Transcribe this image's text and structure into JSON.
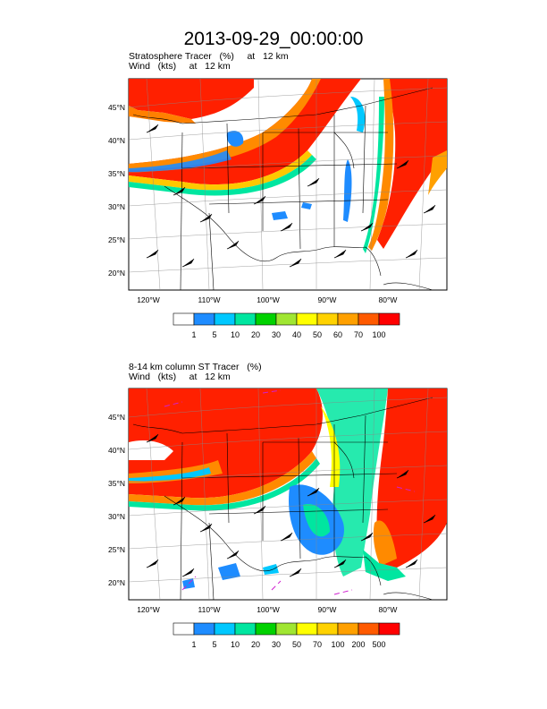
{
  "title": "2013-09-29_00:00:00",
  "panels": [
    {
      "line1": "Stratosphere Tracer   (%)     at   12 km",
      "line2": "Wind   (kts)     at   12 km",
      "colorbar_labels": [
        "1",
        "5",
        "10",
        "20",
        "30",
        "40",
        "50",
        "60",
        "70",
        "100"
      ]
    },
    {
      "line1": "8-14 km column ST Tracer   (%)",
      "line2": "Wind   (kts)     at   12 km",
      "colorbar_labels": [
        "1",
        "5",
        "10",
        "20",
        "30",
        "50",
        "70",
        "100",
        "200",
        "500"
      ]
    }
  ],
  "lat_labels": [
    "45°N",
    "40°N",
    "35°N",
    "30°N",
    "25°N",
    "20°N"
  ],
  "lon_labels": [
    "120°W",
    "110°W",
    "100°W",
    "90°W",
    "80°W"
  ],
  "colorbar_colors": [
    "#ffffff",
    "#1e8cff",
    "#00c8ff",
    "#00e6a0",
    "#00d200",
    "#a0e632",
    "#ffff00",
    "#ffd200",
    "#ffa000",
    "#ff5a00",
    "#ff0000"
  ]
}
